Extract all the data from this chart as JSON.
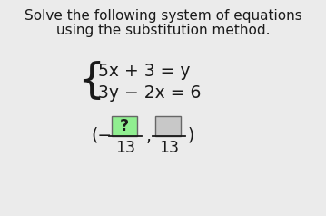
{
  "bg_color": "#ebebeb",
  "title_line1": "Solve the following system of equations",
  "title_line2": "using the substitution method.",
  "eq1": "5x + 3 = y",
  "eq2": "3y − 2x = 6",
  "box1_color": "#90ee90",
  "box2_color": "#c8c8c8",
  "text_color": "#1a1a1a",
  "border_color": "#666666",
  "title_fontsize": 11.0,
  "eq_fontsize": 13.5,
  "answer_fontsize": 13.5,
  "brace_fontsize": 34
}
